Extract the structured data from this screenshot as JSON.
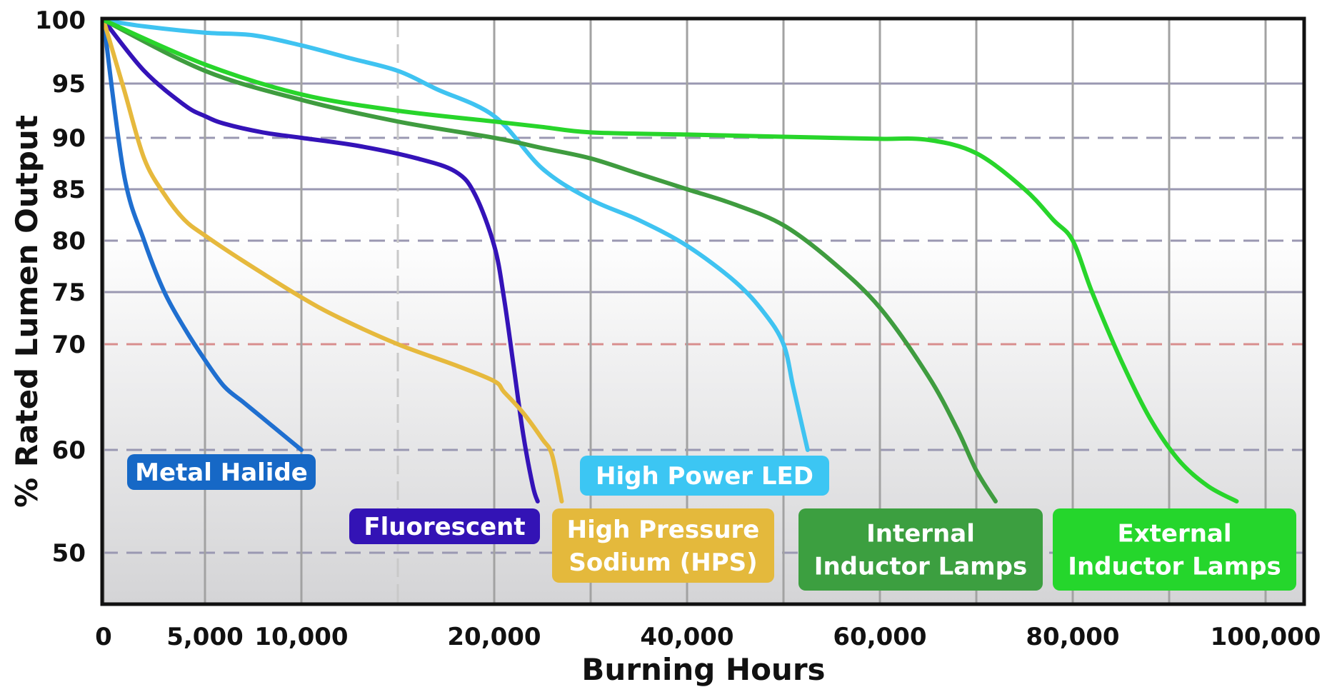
{
  "chart_data": {
    "type": "line",
    "title": "",
    "xlabel": "Burning Hours",
    "ylabel": "% Rated Lumen Output",
    "x_ticks": [
      {
        "value": 0,
        "label": "0"
      },
      {
        "value": 5000,
        "label": "5,000"
      },
      {
        "value": 10000,
        "label": "10,000"
      },
      {
        "value": 20000,
        "label": "20,000"
      },
      {
        "value": 40000,
        "label": "40,000"
      },
      {
        "value": 60000,
        "label": "60,000"
      },
      {
        "value": 80000,
        "label": "80,000"
      },
      {
        "value": 100000,
        "label": "100,000"
      }
    ],
    "x_gridlines": [
      0,
      5000,
      10000,
      15000,
      20000,
      30000,
      40000,
      50000,
      60000,
      70000,
      80000,
      90000,
      100000
    ],
    "x_dashed_gridlines": [
      15000
    ],
    "y_ticks": [
      {
        "value": 100,
        "label": "100"
      },
      {
        "value": 95,
        "label": "95"
      },
      {
        "value": 90,
        "label": "90"
      },
      {
        "value": 85,
        "label": "85"
      },
      {
        "value": 80,
        "label": "80"
      },
      {
        "value": 75,
        "label": "75"
      },
      {
        "value": 70,
        "label": "70"
      },
      {
        "value": 60,
        "label": "60"
      },
      {
        "value": 50,
        "label": "50"
      }
    ],
    "y_gridlines": [
      {
        "value": 95,
        "style": "solid"
      },
      {
        "value": 90,
        "style": "dashed"
      },
      {
        "value": 85,
        "style": "solid"
      },
      {
        "value": 80,
        "style": "dashed"
      },
      {
        "value": 75,
        "style": "solid"
      },
      {
        "value": 70,
        "style": "dashed-red"
      },
      {
        "value": 60,
        "style": "dashed"
      },
      {
        "value": 50,
        "style": "dashed"
      }
    ],
    "xlim": [
      0,
      100000
    ],
    "ylim": [
      44,
      100
    ],
    "grid": true,
    "series": [
      {
        "name": "Metal Halide",
        "color": "#1f6fd0",
        "x": [
          0,
          1000,
          2000,
          3000,
          4000,
          5000,
          6000,
          7000,
          8000,
          9000,
          10000
        ],
        "y": [
          100,
          86.5,
          80.0,
          75.0,
          71.5,
          68.5,
          66.0,
          64.5,
          63.0,
          61.5,
          60.0
        ]
      },
      {
        "name": "Fluorescent",
        "color": "#3413b8",
        "x": [
          0,
          2000,
          4000,
          5000,
          6000,
          8000,
          10000,
          13000,
          16000,
          18000,
          19000,
          20000,
          21000,
          22000,
          23000,
          24000,
          24500
        ],
        "y": [
          100,
          96.0,
          93.0,
          92.0,
          91.3,
          90.5,
          90.0,
          89.2,
          88.0,
          86.7,
          84.5,
          79.5,
          74.5,
          68.0,
          61.5,
          56.5,
          55.0
        ]
      },
      {
        "name": "High Pressure Sodium (HPS)",
        "color": "#e6b93d",
        "x": [
          0,
          1000,
          2000,
          3000,
          4000,
          5000,
          7000,
          10000,
          12000,
          15000,
          18000,
          20000,
          21000,
          23000,
          25000,
          26000,
          27000
        ],
        "y": [
          100,
          94.5,
          88.0,
          84.5,
          82.0,
          80.5,
          78.0,
          74.5,
          72.5,
          70.0,
          68.0,
          66.5,
          65.5,
          63.5,
          61.0,
          59.5,
          55.0
        ]
      },
      {
        "name": "High Power LED",
        "color": "#3fc3f1",
        "x": [
          0,
          2000,
          5000,
          7500,
          10000,
          12500,
          15000,
          17000,
          20000,
          25000,
          30000,
          35000,
          40000,
          45000,
          48000,
          50000,
          51000,
          52000,
          52500
        ],
        "y": [
          100,
          99.5,
          99.0,
          98.8,
          98.0,
          97.0,
          96.0,
          94.5,
          92.0,
          87.0,
          84.0,
          82.0,
          79.5,
          76.0,
          73.0,
          70.0,
          66.0,
          62.0,
          60.0
        ]
      },
      {
        "name": "Internal Inductor Lamps",
        "color": "#3f9c3f",
        "x": [
          0,
          5000,
          10000,
          15000,
          20000,
          25000,
          30000,
          35000,
          40000,
          45000,
          50000,
          55000,
          60000,
          65000,
          68000,
          70000,
          72000
        ],
        "y": [
          100,
          96.0,
          93.5,
          91.5,
          90.0,
          89.0,
          88.0,
          86.5,
          85.0,
          83.5,
          81.5,
          78.0,
          73.5,
          67.0,
          62.0,
          58.0,
          55.0
        ]
      },
      {
        "name": "External Inductor Lamps",
        "color": "#28d52b",
        "x": [
          0,
          5000,
          10000,
          15000,
          20000,
          25000,
          30000,
          40000,
          50000,
          55000,
          60000,
          65000,
          70000,
          75000,
          78000,
          80000,
          82000,
          85000,
          88000,
          91000,
          94000,
          97000
        ],
        "y": [
          100,
          96.5,
          94.0,
          92.5,
          91.5,
          91.0,
          90.5,
          90.3,
          90.1,
          90.0,
          89.9,
          89.8,
          88.5,
          85.0,
          82.0,
          80.0,
          75.0,
          68.5,
          63.0,
          59.0,
          56.5,
          55.0
        ]
      }
    ],
    "labels": [
      {
        "series": "Metal Halide",
        "lines": [
          "Metal Halide"
        ],
        "color": "#1668c6"
      },
      {
        "series": "Fluorescent",
        "lines": [
          "Fluorescent"
        ],
        "color": "#3313b5"
      },
      {
        "series": "High Power LED",
        "lines": [
          "High Power LED"
        ],
        "color": "#3cc6f3"
      },
      {
        "series": "High Pressure Sodium (HPS)",
        "lines": [
          "High Pressure",
          "Sodium (HPS)"
        ],
        "color": "#e4b93c"
      },
      {
        "series": "Internal Inductor Lamps",
        "lines": [
          "Internal",
          "Inductor Lamps"
        ],
        "color": "#3c9f40"
      },
      {
        "series": "External Inductor Lamps",
        "lines": [
          "External",
          "Inductor Lamps"
        ],
        "color": "#25d62c"
      }
    ]
  }
}
